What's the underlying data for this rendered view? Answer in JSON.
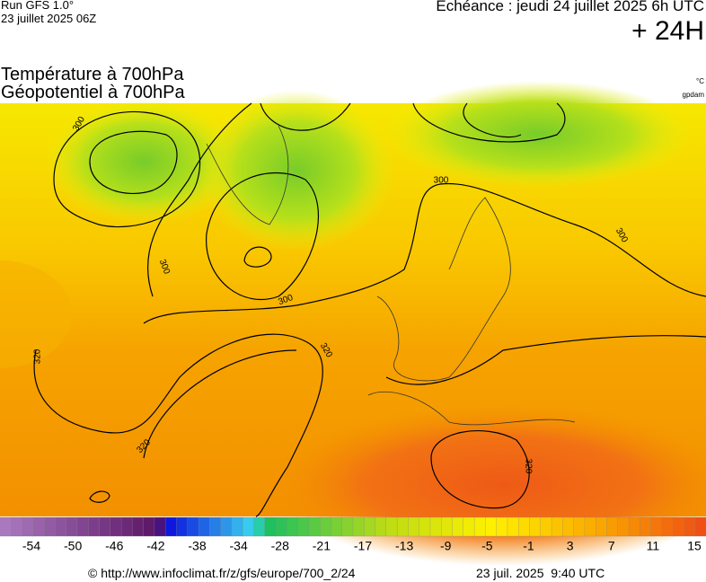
{
  "header": {
    "model": "Run GFS 1.0°",
    "run": "23 juillet 2025 06Z",
    "forecast": "Echéance : jeudi 24 juillet 2025 6h UTC",
    "lead": "+ 24H",
    "title_1": "Température à 700hPa",
    "title_2": "Géopotentiel à 700hPa",
    "unit_1": "°C",
    "unit_2": "gpdam"
  },
  "contour_labels": [
    300,
    300,
    300,
    300,
    300,
    320,
    320,
    320,
    320
  ],
  "colorbar": {
    "labels": [
      "-54",
      "-50",
      "-46",
      "-42",
      "-38",
      "-34",
      "-28",
      "-21",
      "-17",
      "-13",
      "-9",
      "-5",
      "-1",
      "3",
      "7",
      "11",
      "15"
    ]
  },
  "footer": {
    "source": "© http://www.infoclimat.fr/z/gfs/europe/700_2/24",
    "date": "23 juil. 2025  9:40 UTC"
  }
}
